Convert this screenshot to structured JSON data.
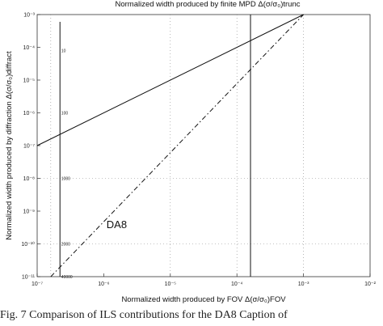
{
  "caption": "Fig. 7    Comparison of ILS contributions for the DA8    Caption of",
  "chart_data": {
    "type": "line",
    "title": "Normalized width produced by finite MPD Δ(σ/σ₀)trunc",
    "xlabel": "Normalized width produced by FOV  Δ(σ/σ₀)FOV",
    "ylabel": "Normalized width produced by diffraction Δ(σ/σ₀)diffract",
    "xscale": "log",
    "yscale": "log",
    "xlim": [
      1e-07,
      0.01
    ],
    "ylim": [
      1e-11,
      0.001
    ],
    "grid": true,
    "x_tick_labels": [
      "10⁻⁷",
      "10⁻⁶",
      "10⁻⁵",
      "10⁻⁴",
      "10⁻³",
      "10⁻²"
    ],
    "y_tick_labels": [
      "10⁻³",
      "10⁻⁴",
      "10⁻⁵",
      "10⁻⁶",
      "10⁻⁷",
      "10⁻⁸",
      "10⁻⁹",
      "10⁻¹⁰",
      "10⁻¹¹"
    ],
    "series": [
      {
        "style": "solid",
        "x": [
          1e-07,
          0.001
        ],
        "y": [
          1e-07,
          0.001
        ]
      },
      {
        "style": "dash-dot",
        "x": [
          1.6e-07,
          0.001
        ],
        "y": [
          1e-11,
          0.001
        ]
      },
      {
        "style": "solid-vertical",
        "x": [
          0.00016,
          0.00016
        ],
        "y": [
          1e-11,
          0.001
        ]
      },
      {
        "style": "solid-vertical",
        "x": [
          2.2e-07,
          2.2e-07
        ],
        "y": [
          1e-11,
          0.0006
        ]
      }
    ],
    "marker_labels": [
      {
        "text": "10",
        "x": 2.3e-07,
        "y": 8e-05
      },
      {
        "text": "100",
        "x": 2.3e-07,
        "y": 1e-06
      },
      {
        "text": "1000",
        "x": 2.3e-07,
        "y": 1e-08
      },
      {
        "text": "2000",
        "x": 2.3e-07,
        "y": 1e-10
      },
      {
        "text": "40000",
        "x": 2.3e-07,
        "y": 1e-11
      }
    ],
    "annotations": [
      {
        "text": "DA8",
        "x": 1.1e-06,
        "y": 3e-10
      }
    ],
    "dotted_grid_x": [
      1.6e-07,
      1e-05,
      0.0001,
      0.001
    ],
    "dotted_grid_y": [
      1e-08,
      1e-10
    ]
  }
}
